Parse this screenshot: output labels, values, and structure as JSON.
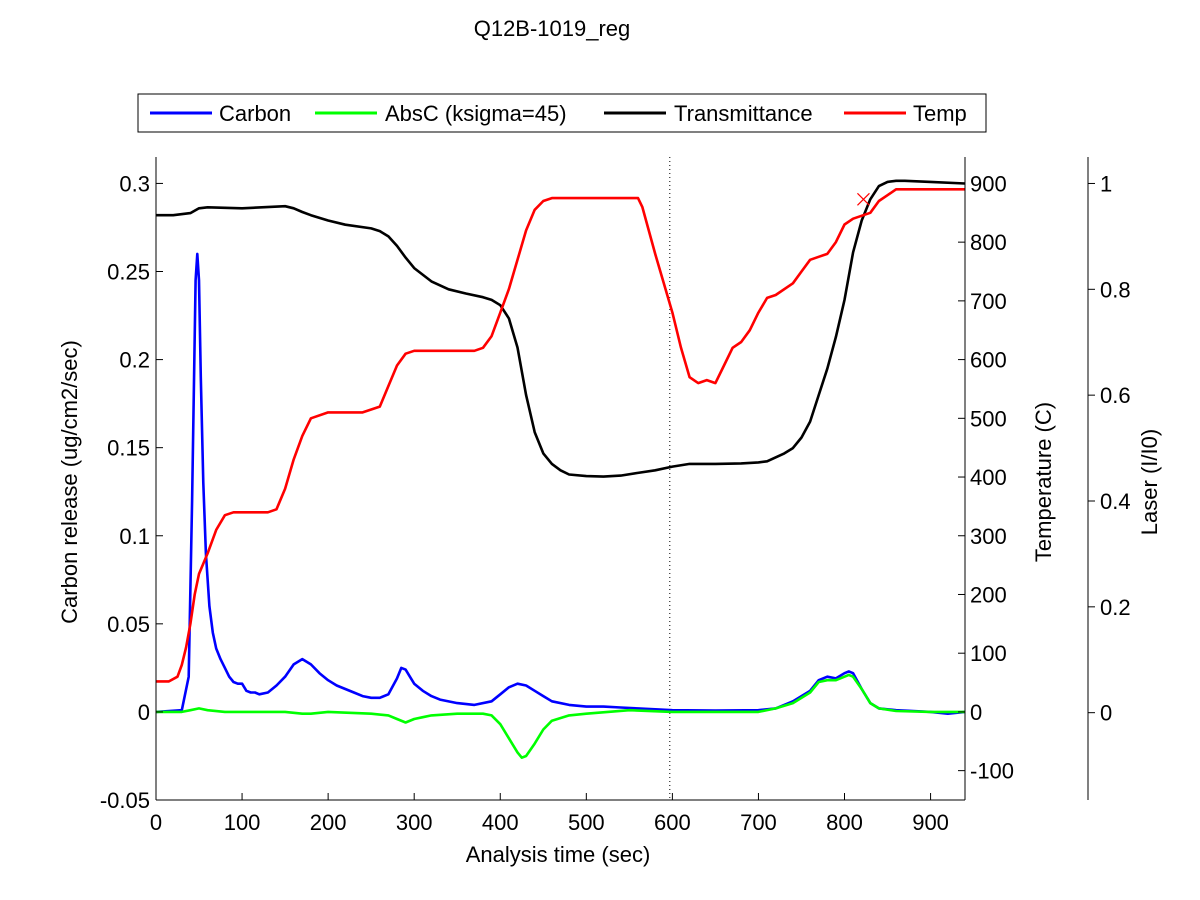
{
  "chart_data": {
    "type": "line",
    "title": "Q12B-1019_reg",
    "xlabel": "Analysis time (sec)",
    "xlim": [
      0,
      940
    ],
    "xticks": [
      "0",
      "100",
      "200",
      "300",
      "400",
      "500",
      "600",
      "700",
      "800",
      "900"
    ],
    "xtick_values": [
      0,
      100,
      200,
      300,
      400,
      500,
      600,
      700,
      800,
      900
    ],
    "axes": {
      "left": {
        "label": "Carbon release (ug/cm2/sec)",
        "lim": [
          -0.05,
          0.315
        ],
        "ticks": [
          "-0.05",
          "0",
          "0.05",
          "0.1",
          "0.15",
          "0.2",
          "0.25",
          "0.3"
        ],
        "tick_values": [
          -0.05,
          0,
          0.05,
          0.1,
          0.15,
          0.2,
          0.25,
          0.3
        ]
      },
      "temp": {
        "label": "Temperature (C)",
        "lim": [
          -150,
          945
        ],
        "ticks": [
          "-100",
          "0",
          "100",
          "200",
          "300",
          "400",
          "500",
          "600",
          "700",
          "800",
          "900"
        ],
        "tick_values": [
          -100,
          0,
          100,
          200,
          300,
          400,
          500,
          600,
          700,
          800,
          900
        ]
      },
      "laser": {
        "label": "Laser (I/I0)",
        "lim": [
          -0.165,
          1.05
        ],
        "ticks": [
          "0",
          "0.2",
          "0.4",
          "0.6",
          "0.8",
          "1"
        ],
        "tick_values": [
          0,
          0.2,
          0.4,
          0.6,
          0.8,
          1
        ]
      }
    },
    "legend": {
      "placement": "top",
      "entries": [
        "Carbon",
        "AbsC (ksigma=45)",
        "Transmittance",
        "Temp"
      ]
    },
    "split_line_x": 597,
    "split_point": {
      "x": 822,
      "y": 0.97
    },
    "series": [
      {
        "name": "Carbon",
        "axis": "left",
        "color": "#0000ff",
        "x": [
          0,
          30,
          38,
          42,
          46,
          48,
          50,
          52,
          55,
          58,
          62,
          66,
          70,
          75,
          80,
          85,
          90,
          95,
          100,
          105,
          110,
          115,
          120,
          130,
          140,
          150,
          160,
          170,
          180,
          190,
          200,
          210,
          220,
          230,
          240,
          250,
          260,
          270,
          280,
          285,
          290,
          295,
          300,
          310,
          320,
          330,
          350,
          370,
          390,
          400,
          410,
          420,
          430,
          440,
          450,
          460,
          480,
          500,
          520,
          540,
          560,
          580,
          600,
          650,
          700,
          720,
          740,
          760,
          770,
          780,
          790,
          800,
          805,
          810,
          820,
          830,
          840,
          860,
          880,
          900,
          920,
          940
        ],
        "y": [
          0.0,
          0.001,
          0.02,
          0.12,
          0.245,
          0.26,
          0.245,
          0.19,
          0.13,
          0.09,
          0.06,
          0.045,
          0.036,
          0.03,
          0.025,
          0.02,
          0.017,
          0.016,
          0.016,
          0.012,
          0.011,
          0.011,
          0.01,
          0.011,
          0.015,
          0.02,
          0.027,
          0.03,
          0.027,
          0.022,
          0.018,
          0.015,
          0.013,
          0.011,
          0.009,
          0.008,
          0.008,
          0.01,
          0.019,
          0.025,
          0.024,
          0.02,
          0.016,
          0.012,
          0.009,
          0.007,
          0.005,
          0.004,
          0.006,
          0.01,
          0.014,
          0.016,
          0.015,
          0.012,
          0.009,
          0.006,
          0.004,
          0.003,
          0.003,
          0.0025,
          0.002,
          0.0015,
          0.001,
          0.0008,
          0.001,
          0.002,
          0.006,
          0.012,
          0.018,
          0.02,
          0.019,
          0.022,
          0.023,
          0.022,
          0.013,
          0.005,
          0.002,
          0.001,
          0.0005,
          0.0,
          -0.001,
          0.0
        ]
      },
      {
        "name": "AbsC (ksigma=45)",
        "axis": "left",
        "color": "#00ff00",
        "x": [
          0,
          30,
          40,
          50,
          60,
          80,
          100,
          150,
          170,
          180,
          200,
          250,
          270,
          280,
          290,
          300,
          310,
          320,
          350,
          380,
          390,
          400,
          410,
          420,
          425,
          430,
          440,
          450,
          460,
          480,
          500,
          550,
          600,
          650,
          700,
          720,
          740,
          760,
          770,
          780,
          790,
          800,
          805,
          810,
          820,
          830,
          840,
          860,
          900,
          940
        ],
        "y": [
          0.0,
          0.0,
          0.001,
          0.002,
          0.001,
          0.0,
          0.0,
          0.0,
          -0.001,
          -0.001,
          0.0,
          -0.001,
          -0.002,
          -0.004,
          -0.006,
          -0.004,
          -0.003,
          -0.002,
          -0.001,
          -0.001,
          -0.002,
          -0.007,
          -0.015,
          -0.023,
          -0.026,
          -0.025,
          -0.018,
          -0.01,
          -0.005,
          -0.002,
          -0.001,
          0.001,
          0.0,
          0.0,
          0.0,
          0.002,
          0.005,
          0.011,
          0.017,
          0.018,
          0.018,
          0.02,
          0.021,
          0.02,
          0.013,
          0.005,
          0.002,
          0.0005,
          0.0,
          0.0
        ]
      },
      {
        "name": "Transmittance",
        "axis": "laser",
        "color": "#000000",
        "x": [
          0,
          20,
          40,
          50,
          60,
          100,
          150,
          160,
          170,
          180,
          200,
          220,
          250,
          260,
          270,
          280,
          290,
          300,
          320,
          340,
          360,
          380,
          390,
          400,
          410,
          420,
          430,
          440,
          450,
          460,
          470,
          480,
          500,
          520,
          540,
          560,
          580,
          600,
          620,
          650,
          680,
          700,
          710,
          730,
          740,
          750,
          760,
          770,
          780,
          790,
          800,
          810,
          820,
          830,
          840,
          850,
          860,
          870,
          900,
          940
        ],
        "y": [
          0.94,
          0.94,
          0.944,
          0.953,
          0.955,
          0.953,
          0.957,
          0.953,
          0.946,
          0.94,
          0.93,
          0.922,
          0.915,
          0.91,
          0.9,
          0.882,
          0.86,
          0.84,
          0.815,
          0.8,
          0.792,
          0.785,
          0.78,
          0.77,
          0.745,
          0.69,
          0.6,
          0.53,
          0.49,
          0.47,
          0.458,
          0.45,
          0.447,
          0.446,
          0.448,
          0.453,
          0.458,
          0.465,
          0.47,
          0.47,
          0.471,
          0.473,
          0.475,
          0.49,
          0.5,
          0.52,
          0.55,
          0.6,
          0.65,
          0.71,
          0.78,
          0.87,
          0.93,
          0.97,
          0.995,
          1.003,
          1.005,
          1.005,
          1.003,
          1.0
        ]
      },
      {
        "name": "Temp",
        "axis": "temp",
        "color": "#ff0000",
        "x": [
          0,
          15,
          25,
          30,
          35,
          40,
          45,
          50,
          60,
          70,
          80,
          90,
          100,
          110,
          130,
          140,
          150,
          160,
          170,
          180,
          200,
          240,
          260,
          270,
          280,
          290,
          300,
          320,
          340,
          370,
          380,
          390,
          400,
          410,
          420,
          430,
          440,
          450,
          460,
          500,
          560,
          565,
          580,
          590,
          600,
          610,
          620,
          630,
          640,
          650,
          660,
          670,
          680,
          690,
          700,
          710,
          720,
          740,
          750,
          760,
          770,
          780,
          790,
          800,
          810,
          830,
          840,
          850,
          860,
          900,
          940
        ],
        "y": [
          52,
          52,
          60,
          80,
          110,
          150,
          200,
          235,
          270,
          310,
          335,
          340,
          340,
          340,
          340,
          345,
          380,
          430,
          470,
          500,
          510,
          510,
          520,
          555,
          590,
          610,
          615,
          615,
          615,
          615,
          620,
          640,
          680,
          720,
          770,
          820,
          855,
          870,
          875,
          875,
          875,
          860,
          780,
          730,
          680,
          620,
          570,
          560,
          565,
          560,
          590,
          620,
          630,
          650,
          680,
          705,
          710,
          730,
          750,
          770,
          775,
          780,
          800,
          830,
          840,
          850,
          870,
          880,
          890,
          890,
          890
        ]
      }
    ]
  }
}
